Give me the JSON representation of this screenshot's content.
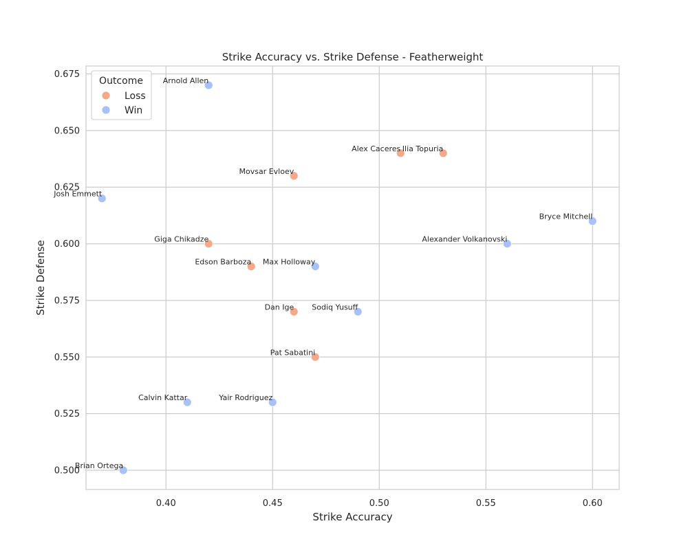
{
  "chart_data": {
    "type": "scatter",
    "title": "Strike Accuracy vs. Strike Defense - Featherweight",
    "xlabel": "Strike Accuracy",
    "ylabel": "Strike Defense",
    "xlim": [
      0.3625,
      0.6125
    ],
    "ylim": [
      0.4915,
      0.6785
    ],
    "xticks": [
      0.4,
      0.45,
      0.5,
      0.55,
      0.6
    ],
    "xtick_labels": [
      "0.40",
      "0.45",
      "0.50",
      "0.55",
      "0.60"
    ],
    "yticks": [
      0.5,
      0.525,
      0.55,
      0.575,
      0.6,
      0.625,
      0.65,
      0.675
    ],
    "ytick_labels": [
      "0.500",
      "0.525",
      "0.550",
      "0.575",
      "0.600",
      "0.625",
      "0.650",
      "0.675"
    ],
    "grid": true,
    "legend": {
      "title": "Outcome",
      "placement": "top-left",
      "entries": [
        {
          "name": "Loss",
          "color": "#f4a98a"
        },
        {
          "name": "Win",
          "color": "#a8c1f7"
        }
      ]
    },
    "series": [
      {
        "name": "Loss",
        "color": "#f4a98a",
        "points": [
          {
            "label": "Alex Caceres",
            "x": 0.51,
            "y": 0.64
          },
          {
            "label": "Ilia Topuria",
            "x": 0.53,
            "y": 0.64
          },
          {
            "label": "Movsar Evloev",
            "x": 0.46,
            "y": 0.63
          },
          {
            "label": "Giga Chikadze",
            "x": 0.42,
            "y": 0.6
          },
          {
            "label": "Edson Barboza",
            "x": 0.44,
            "y": 0.59
          },
          {
            "label": "Dan Ige",
            "x": 0.46,
            "y": 0.57
          },
          {
            "label": "Pat Sabatini",
            "x": 0.47,
            "y": 0.55
          }
        ]
      },
      {
        "name": "Win",
        "color": "#a8c1f7",
        "points": [
          {
            "label": "Arnold Allen",
            "x": 0.42,
            "y": 0.67
          },
          {
            "label": "Josh Emmett",
            "x": 0.37,
            "y": 0.62
          },
          {
            "label": "Bryce Mitchell",
            "x": 0.6,
            "y": 0.61
          },
          {
            "label": "Alexander Volkanovski",
            "x": 0.56,
            "y": 0.6
          },
          {
            "label": "Max Holloway",
            "x": 0.47,
            "y": 0.59
          },
          {
            "label": "Sodiq Yusuff",
            "x": 0.49,
            "y": 0.57
          },
          {
            "label": "Calvin Kattar",
            "x": 0.41,
            "y": 0.53
          },
          {
            "label": "Yair Rodriguez",
            "x": 0.45,
            "y": 0.53
          },
          {
            "label": "Brian Ortega",
            "x": 0.38,
            "y": 0.5
          }
        ]
      }
    ]
  }
}
